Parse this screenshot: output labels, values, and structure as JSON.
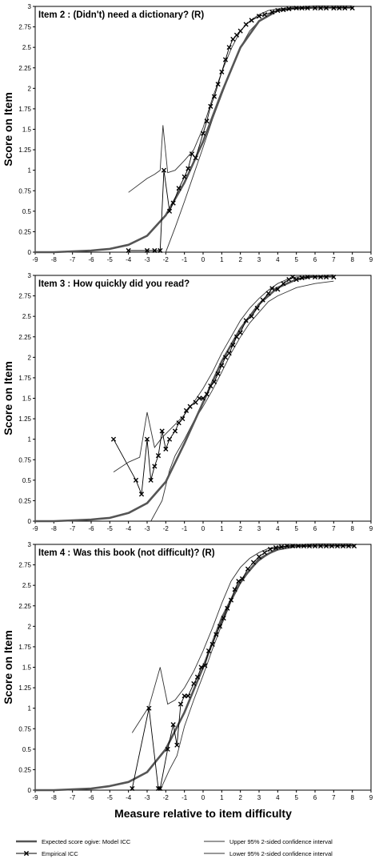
{
  "chart_data": {
    "type": "line",
    "xlabel": "Measure relative to item difficulty",
    "xlim": [
      -9,
      9
    ],
    "xticks": [
      "-9",
      "-8",
      "-7",
      "-6",
      "-5",
      "-4",
      "-3",
      "-2",
      "-1",
      "0",
      "1",
      "2",
      "3",
      "4",
      "5",
      "6",
      "7",
      "8",
      "9"
    ],
    "ylim": [
      0,
      3
    ],
    "yticks": [
      "0",
      "0.25",
      "0.5",
      "0.75",
      "1",
      "1.25",
      "1.5",
      "1.75",
      "2",
      "2.25",
      "2.5",
      "2.75",
      "3"
    ],
    "legend": {
      "placement": "bottom",
      "entries": [
        "Expected score ogive: Model ICC",
        "Empirical ICC",
        "Upper 95% 2-sided confidence interval",
        "Lower 95% 2-sided confidence interval"
      ]
    },
    "panels": [
      {
        "title": "Item 2 : (Didn't) need a dictionary? (R)",
        "ylabel": "Score on Item",
        "model": [
          [
            -9,
            0.0
          ],
          [
            -8,
            0.0
          ],
          [
            -7,
            0.01
          ],
          [
            -6,
            0.02
          ],
          [
            -5,
            0.04
          ],
          [
            -4,
            0.09
          ],
          [
            -3,
            0.2
          ],
          [
            -2,
            0.45
          ],
          [
            -1,
            0.85
          ],
          [
            0,
            1.35
          ],
          [
            1,
            1.95
          ],
          [
            2,
            2.5
          ],
          [
            3,
            2.82
          ],
          [
            4,
            2.95
          ],
          [
            5,
            2.99
          ],
          [
            6,
            3.0
          ],
          [
            7,
            3.0
          ],
          [
            8,
            3.0
          ]
        ],
        "empirical": [
          [
            -4.0,
            0.02
          ],
          [
            -3.0,
            0.02
          ],
          [
            -2.6,
            0.02
          ],
          [
            -2.3,
            0.02
          ],
          [
            -2.1,
            1.0
          ],
          [
            -1.8,
            0.5
          ],
          [
            -1.6,
            0.6
          ],
          [
            -1.3,
            0.78
          ],
          [
            -1.0,
            0.92
          ],
          [
            -0.8,
            1.02
          ],
          [
            -0.6,
            1.2
          ],
          [
            -0.4,
            1.15
          ],
          [
            0.0,
            1.45
          ],
          [
            0.2,
            1.6
          ],
          [
            0.4,
            1.78
          ],
          [
            0.6,
            1.9
          ],
          [
            0.8,
            2.05
          ],
          [
            1.0,
            2.2
          ],
          [
            1.2,
            2.35
          ],
          [
            1.4,
            2.5
          ],
          [
            1.6,
            2.6
          ],
          [
            1.8,
            2.65
          ],
          [
            2.0,
            2.7
          ],
          [
            2.3,
            2.78
          ],
          [
            2.6,
            2.83
          ],
          [
            3.0,
            2.88
          ],
          [
            3.3,
            2.9
          ],
          [
            3.7,
            2.93
          ],
          [
            4.0,
            2.95
          ],
          [
            4.3,
            2.96
          ],
          [
            4.6,
            2.97
          ],
          [
            5.0,
            2.98
          ],
          [
            5.3,
            2.98
          ],
          [
            5.6,
            2.98
          ],
          [
            6.0,
            2.98
          ],
          [
            6.3,
            2.98
          ],
          [
            6.6,
            2.98
          ],
          [
            7.0,
            2.98
          ],
          [
            7.3,
            2.98
          ],
          [
            7.6,
            2.98
          ],
          [
            8.0,
            2.98
          ]
        ],
        "upper": [
          [
            -4.0,
            0.73
          ],
          [
            -3.0,
            0.9
          ],
          [
            -2.6,
            0.95
          ],
          [
            -2.3,
            1.0
          ],
          [
            -2.15,
            1.55
          ],
          [
            -1.9,
            0.97
          ],
          [
            -1.5,
            1.0
          ],
          [
            -1.0,
            1.12
          ],
          [
            -0.5,
            1.25
          ],
          [
            0.0,
            1.52
          ],
          [
            0.5,
            1.88
          ],
          [
            1.0,
            2.2
          ],
          [
            1.5,
            2.48
          ],
          [
            2.0,
            2.7
          ],
          [
            2.5,
            2.82
          ],
          [
            3.0,
            2.9
          ],
          [
            3.5,
            2.95
          ],
          [
            4.0,
            2.97
          ],
          [
            5.0,
            2.99
          ],
          [
            6.0,
            3.0
          ],
          [
            8.0,
            3.0
          ]
        ],
        "lower": [
          [
            -2.3,
            0.0
          ],
          [
            -2.0,
            0.0
          ],
          [
            -1.5,
            0.3
          ],
          [
            -1.0,
            0.62
          ],
          [
            -0.5,
            0.95
          ],
          [
            0.0,
            1.28
          ],
          [
            0.5,
            1.62
          ],
          [
            1.0,
            1.92
          ],
          [
            1.5,
            2.22
          ],
          [
            2.0,
            2.5
          ],
          [
            2.5,
            2.7
          ],
          [
            3.0,
            2.82
          ],
          [
            3.5,
            2.9
          ],
          [
            4.0,
            2.94
          ],
          [
            5.0,
            2.97
          ],
          [
            6.0,
            2.98
          ],
          [
            8.0,
            2.99
          ]
        ]
      },
      {
        "title": "Item 3 : How quickly did you read?",
        "ylabel": "Score on Item",
        "model": [
          [
            -9,
            0.0
          ],
          [
            -8,
            0.0
          ],
          [
            -7,
            0.01
          ],
          [
            -6,
            0.02
          ],
          [
            -5,
            0.04
          ],
          [
            -4,
            0.1
          ],
          [
            -3,
            0.22
          ],
          [
            -2,
            0.48
          ],
          [
            -1,
            0.95
          ],
          [
            0,
            1.45
          ],
          [
            1,
            1.95
          ],
          [
            2,
            2.35
          ],
          [
            3,
            2.65
          ],
          [
            4,
            2.85
          ],
          [
            5,
            2.95
          ],
          [
            6,
            2.99
          ],
          [
            7,
            3.0
          ]
        ],
        "empirical": [
          [
            -4.8,
            1.0
          ],
          [
            -3.6,
            0.5
          ],
          [
            -3.3,
            0.33
          ],
          [
            -3.0,
            1.0
          ],
          [
            -2.8,
            0.5
          ],
          [
            -2.6,
            0.67
          ],
          [
            -2.4,
            0.8
          ],
          [
            -2.2,
            1.1
          ],
          [
            -2.0,
            0.88
          ],
          [
            -1.8,
            1.0
          ],
          [
            -1.5,
            1.1
          ],
          [
            -1.3,
            1.2
          ],
          [
            -1.1,
            1.25
          ],
          [
            -0.9,
            1.35
          ],
          [
            -0.7,
            1.4
          ],
          [
            -0.4,
            1.45
          ],
          [
            -0.2,
            1.5
          ],
          [
            0.0,
            1.5
          ],
          [
            0.2,
            1.55
          ],
          [
            0.4,
            1.65
          ],
          [
            0.6,
            1.7
          ],
          [
            0.8,
            1.8
          ],
          [
            1.0,
            1.9
          ],
          [
            1.2,
            2.0
          ],
          [
            1.4,
            2.05
          ],
          [
            1.6,
            2.15
          ],
          [
            1.8,
            2.25
          ],
          [
            2.0,
            2.3
          ],
          [
            2.3,
            2.45
          ],
          [
            2.6,
            2.5
          ],
          [
            2.9,
            2.6
          ],
          [
            3.2,
            2.7
          ],
          [
            3.5,
            2.78
          ],
          [
            3.7,
            2.84
          ],
          [
            4.0,
            2.83
          ],
          [
            4.3,
            2.9
          ],
          [
            4.6,
            2.95
          ],
          [
            4.8,
            2.98
          ],
          [
            5.0,
            2.95
          ],
          [
            5.3,
            2.97
          ],
          [
            5.6,
            2.98
          ],
          [
            6.0,
            2.98
          ],
          [
            6.3,
            2.98
          ],
          [
            6.6,
            2.98
          ],
          [
            7.0,
            2.98
          ]
        ],
        "upper": [
          [
            -4.8,
            0.6
          ],
          [
            -4.0,
            0.72
          ],
          [
            -3.4,
            0.78
          ],
          [
            -3.0,
            1.33
          ],
          [
            -2.6,
            0.9
          ],
          [
            -2.2,
            1.02
          ],
          [
            -1.5,
            1.18
          ],
          [
            -1.0,
            1.3
          ],
          [
            -0.5,
            1.45
          ],
          [
            0.0,
            1.62
          ],
          [
            0.5,
            1.82
          ],
          [
            1.0,
            2.05
          ],
          [
            1.5,
            2.25
          ],
          [
            2.0,
            2.45
          ],
          [
            2.5,
            2.6
          ],
          [
            3.0,
            2.72
          ],
          [
            3.5,
            2.82
          ],
          [
            4.0,
            2.9
          ],
          [
            4.5,
            2.95
          ],
          [
            5.0,
            2.98
          ],
          [
            6.0,
            2.99
          ],
          [
            7.0,
            3.0
          ]
        ],
        "lower": [
          [
            -2.8,
            0.0
          ],
          [
            -2.2,
            0.25
          ],
          [
            -1.8,
            0.62
          ],
          [
            -1.5,
            0.8
          ],
          [
            -1.0,
            1.0
          ],
          [
            -0.5,
            1.22
          ],
          [
            0.0,
            1.4
          ],
          [
            0.5,
            1.6
          ],
          [
            1.0,
            1.82
          ],
          [
            1.5,
            2.05
          ],
          [
            2.0,
            2.25
          ],
          [
            2.5,
            2.42
          ],
          [
            3.0,
            2.55
          ],
          [
            3.5,
            2.68
          ],
          [
            4.0,
            2.75
          ],
          [
            4.5,
            2.8
          ],
          [
            5.0,
            2.85
          ],
          [
            6.0,
            2.9
          ],
          [
            7.0,
            2.93
          ]
        ]
      },
      {
        "title": "Item 4 : Was this book (not difficult)? (R)",
        "ylabel": "Score on Item",
        "model": [
          [
            -9,
            0.0
          ],
          [
            -8,
            0.0
          ],
          [
            -7,
            0.01
          ],
          [
            -6,
            0.02
          ],
          [
            -5,
            0.05
          ],
          [
            -4,
            0.1
          ],
          [
            -3,
            0.22
          ],
          [
            -2,
            0.5
          ],
          [
            -1,
            0.95
          ],
          [
            0,
            1.5
          ],
          [
            1,
            2.1
          ],
          [
            2,
            2.55
          ],
          [
            3,
            2.82
          ],
          [
            4,
            2.95
          ],
          [
            5,
            2.99
          ],
          [
            6,
            3.0
          ],
          [
            8,
            3.0
          ]
        ],
        "empirical": [
          [
            -3.8,
            0.02
          ],
          [
            -2.9,
            1.0
          ],
          [
            -2.4,
            0.02
          ],
          [
            -2.3,
            0.02
          ],
          [
            -1.9,
            0.5
          ],
          [
            -1.6,
            0.8
          ],
          [
            -1.4,
            0.55
          ],
          [
            -1.2,
            1.05
          ],
          [
            -1.0,
            1.15
          ],
          [
            -0.8,
            1.15
          ],
          [
            -0.5,
            1.3
          ],
          [
            -0.3,
            1.38
          ],
          [
            -0.1,
            1.5
          ],
          [
            0.1,
            1.52
          ],
          [
            0.3,
            1.7
          ],
          [
            0.5,
            1.78
          ],
          [
            0.7,
            1.9
          ],
          [
            0.9,
            2.0
          ],
          [
            1.1,
            2.1
          ],
          [
            1.3,
            2.22
          ],
          [
            1.5,
            2.32
          ],
          [
            1.7,
            2.45
          ],
          [
            1.9,
            2.55
          ],
          [
            2.1,
            2.58
          ],
          [
            2.4,
            2.7
          ],
          [
            2.7,
            2.78
          ],
          [
            3.0,
            2.85
          ],
          [
            3.3,
            2.9
          ],
          [
            3.6,
            2.94
          ],
          [
            3.9,
            2.96
          ],
          [
            4.2,
            2.97
          ],
          [
            4.5,
            2.98
          ],
          [
            4.8,
            2.98
          ],
          [
            5.1,
            2.98
          ],
          [
            5.4,
            2.98
          ],
          [
            5.7,
            2.98
          ],
          [
            6.0,
            2.98
          ],
          [
            6.3,
            2.98
          ],
          [
            6.6,
            2.98
          ],
          [
            6.9,
            2.98
          ],
          [
            7.2,
            2.98
          ],
          [
            7.5,
            2.98
          ],
          [
            7.8,
            2.98
          ],
          [
            8.1,
            2.98
          ]
        ],
        "upper": [
          [
            -3.8,
            0.7
          ],
          [
            -2.9,
            1.02
          ],
          [
            -2.3,
            1.5
          ],
          [
            -1.9,
            1.05
          ],
          [
            -1.5,
            1.1
          ],
          [
            -1.0,
            1.25
          ],
          [
            -0.5,
            1.45
          ],
          [
            0.0,
            1.7
          ],
          [
            0.5,
            1.98
          ],
          [
            1.0,
            2.28
          ],
          [
            1.5,
            2.55
          ],
          [
            2.0,
            2.72
          ],
          [
            2.5,
            2.83
          ],
          [
            3.0,
            2.9
          ],
          [
            3.5,
            2.95
          ],
          [
            4.0,
            2.97
          ],
          [
            5.0,
            2.99
          ],
          [
            6.0,
            3.0
          ],
          [
            8.0,
            3.0
          ]
        ],
        "lower": [
          [
            -2.9,
            0.0
          ],
          [
            -2.3,
            0.0
          ],
          [
            -1.8,
            0.25
          ],
          [
            -1.4,
            0.42
          ],
          [
            -1.0,
            0.78
          ],
          [
            -0.5,
            1.1
          ],
          [
            0.0,
            1.4
          ],
          [
            0.5,
            1.72
          ],
          [
            1.0,
            2.02
          ],
          [
            1.5,
            2.3
          ],
          [
            2.0,
            2.52
          ],
          [
            2.5,
            2.68
          ],
          [
            3.0,
            2.8
          ],
          [
            3.5,
            2.88
          ],
          [
            4.0,
            2.93
          ],
          [
            5.0,
            2.97
          ],
          [
            6.0,
            2.98
          ],
          [
            8.0,
            2.99
          ]
        ]
      }
    ]
  }
}
